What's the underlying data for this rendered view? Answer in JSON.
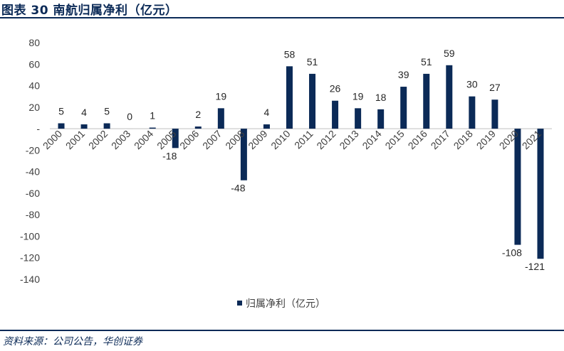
{
  "figure": {
    "title": "图表 30   南航归属净利（亿元）",
    "source": "资料来源：公司公告，华创证券"
  },
  "colors": {
    "bar": "#0b2a57",
    "axis": "#bfbfbf",
    "text": "#404040"
  },
  "chart_data": {
    "type": "bar",
    "categories": [
      "2000",
      "2001",
      "2002",
      "2003",
      "2004",
      "2005",
      "2006",
      "2007",
      "2008",
      "2009",
      "2010",
      "2011",
      "2012",
      "2013",
      "2014",
      "2015",
      "2016",
      "2017",
      "2018",
      "2019",
      "2020",
      "2021"
    ],
    "series": [
      {
        "name": "归属净利（亿元）",
        "values": [
          5,
          4,
          5,
          0,
          1,
          -18,
          2,
          19,
          -48,
          4,
          58,
          51,
          26,
          19,
          18,
          39,
          51,
          59,
          30,
          27,
          -108,
          -121
        ]
      }
    ],
    "ylim": [
      -140,
      80
    ],
    "yticks": [
      80,
      60,
      40,
      20,
      0,
      -20,
      -40,
      -60,
      -80,
      -100,
      -120,
      -140
    ],
    "ytick_labels": [
      "80",
      "60",
      "40",
      "20",
      "-",
      "-20",
      "-40",
      "-60",
      "-80",
      "-100",
      "-120",
      "-140"
    ],
    "legend_position": "bottom-center",
    "grid": false
  }
}
